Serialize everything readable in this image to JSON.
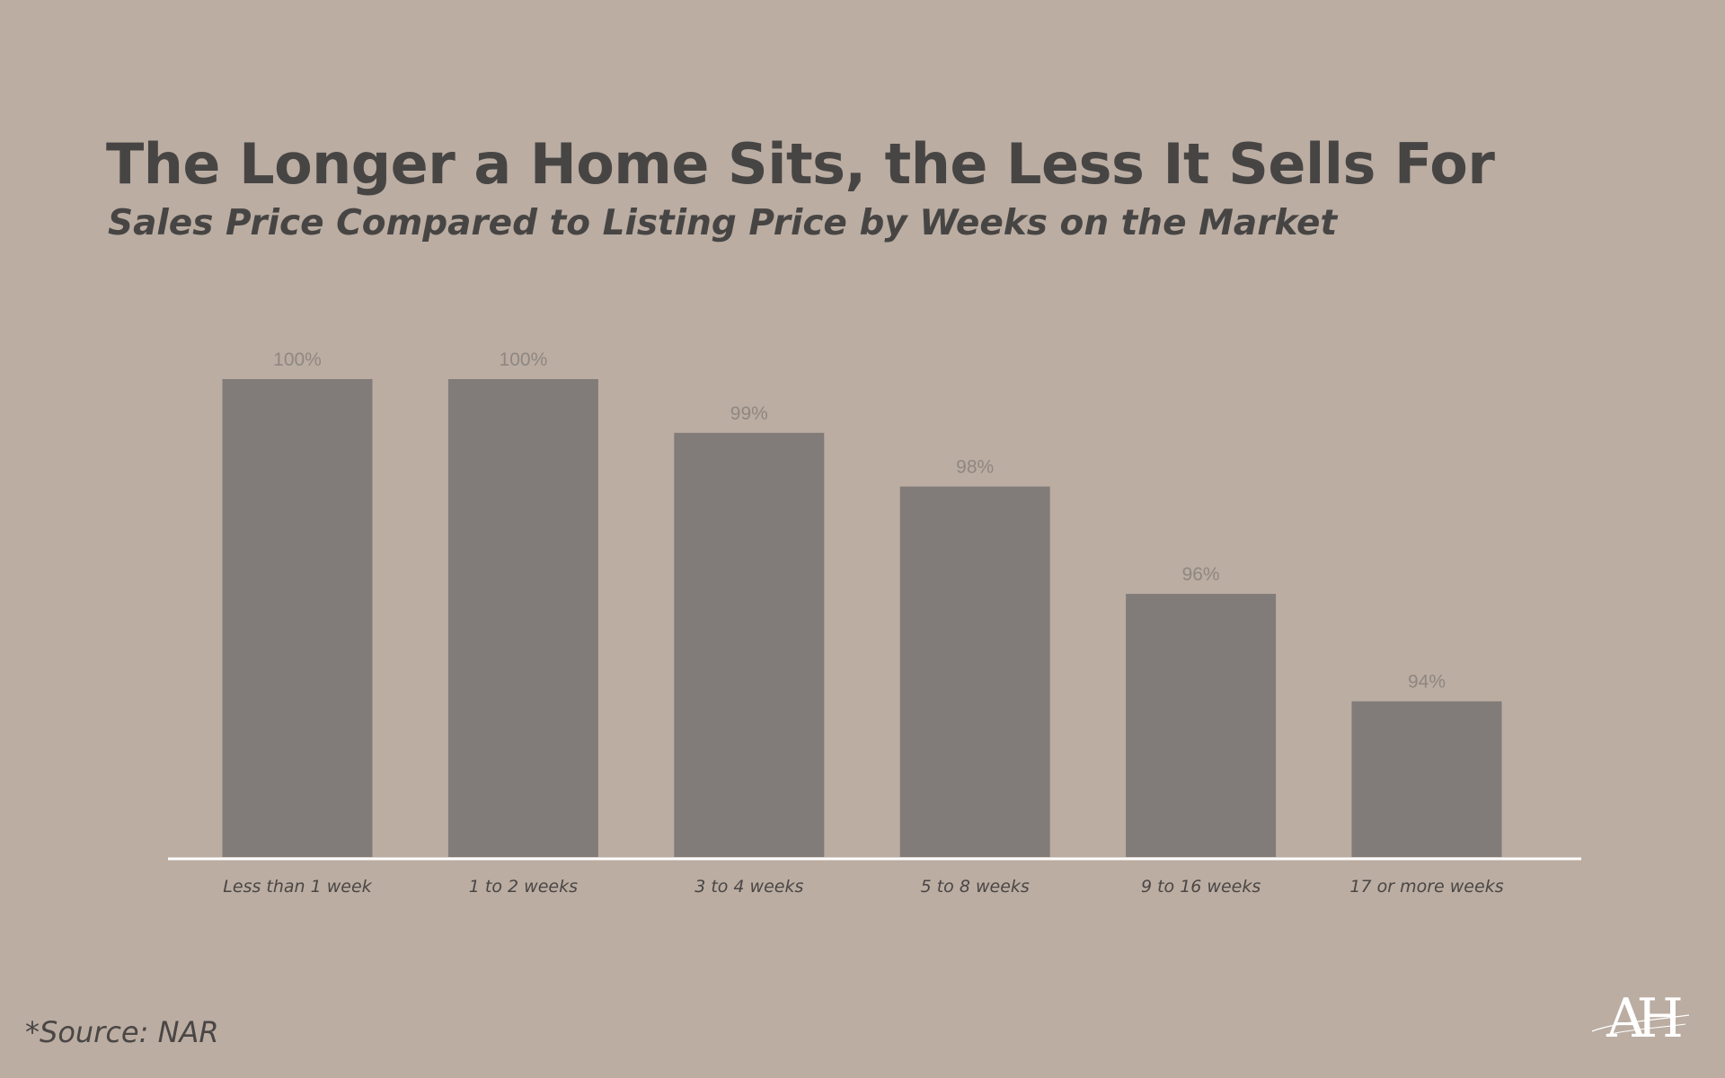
{
  "chart_data": {
    "type": "bar",
    "title": "The Longer a Home Sits, the Less It Sells For",
    "subtitle": "Sales Price Compared to Listing Price by Weeks on the Market",
    "categories": [
      "Less than 1 week",
      "1 to 2 weeks",
      "3 to 4 weeks",
      "5 to 8 weeks",
      "9 to 16 weeks",
      "17 or more weeks"
    ],
    "values": [
      100,
      100,
      99,
      98,
      96,
      94
    ],
    "value_labels": [
      "100%",
      "100%",
      "99%",
      "98%",
      "96%",
      "94%"
    ],
    "ylim": [
      91.1,
      100
    ],
    "grid": false,
    "legend": "none",
    "colors": {
      "background": "#bbada2",
      "bar": "#817c79",
      "axis_line": "#ffffff",
      "text": "#474544",
      "value_label": "#8f8782"
    }
  },
  "source": "*Source: NAR",
  "logo": {
    "icon": "ah-monogram-logo",
    "lettering": "AH"
  }
}
